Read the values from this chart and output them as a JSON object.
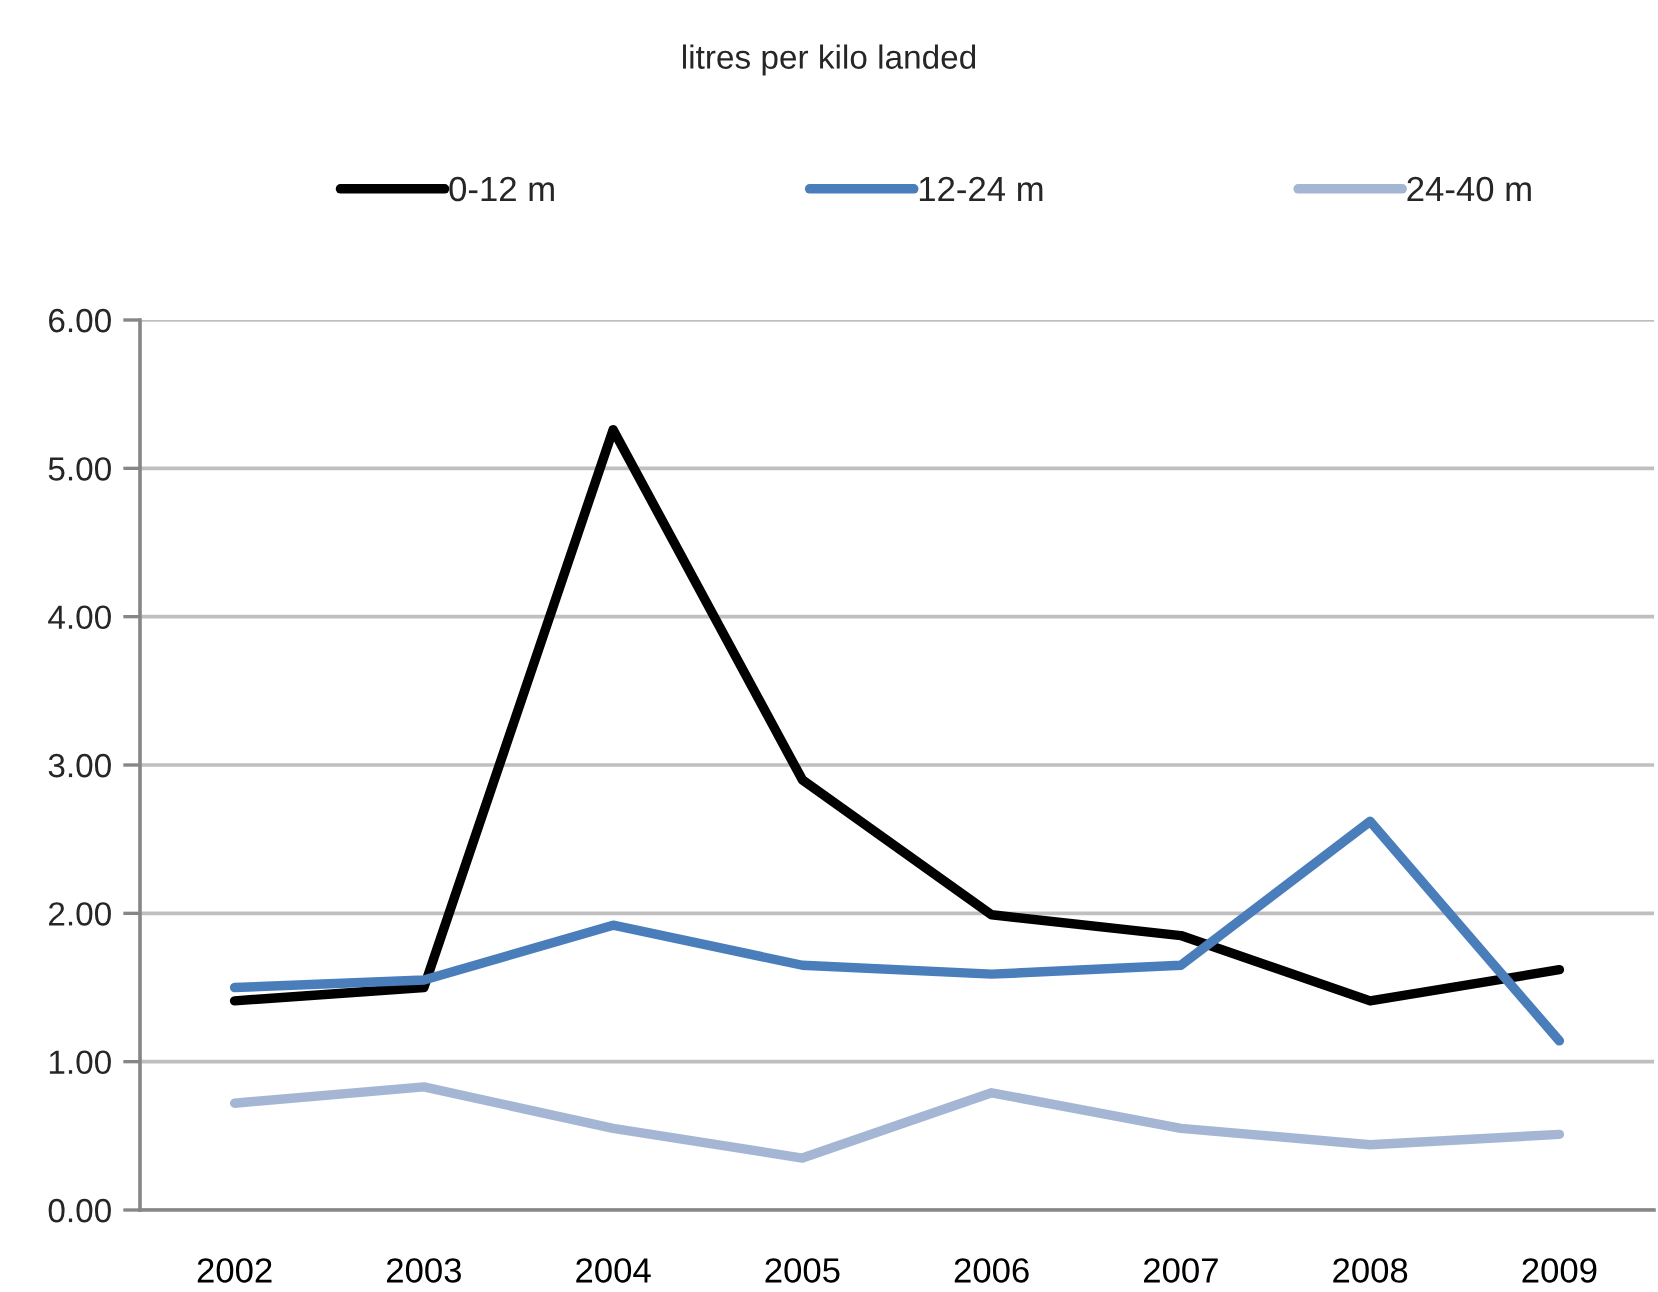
{
  "chart_data": {
    "type": "line",
    "title": "litres per kilo landed",
    "categories": [
      "2002",
      "2003",
      "2004",
      "2005",
      "2006",
      "2007",
      "2008",
      "2009"
    ],
    "series": [
      {
        "name": "0-12 m",
        "color": "#000000",
        "values": [
          1.41,
          1.5,
          5.26,
          2.9,
          1.99,
          1.85,
          1.41,
          1.62
        ]
      },
      {
        "name": "12-24 m",
        "color": "#4a7ebb",
        "values": [
          1.5,
          1.55,
          1.92,
          1.65,
          1.59,
          1.65,
          2.62,
          1.14
        ]
      },
      {
        "name": "24-40 m",
        "color": "#a5b6d5",
        "values": [
          0.72,
          0.83,
          0.55,
          0.35,
          0.79,
          0.55,
          0.44,
          0.51
        ]
      }
    ],
    "ylim": [
      0,
      6
    ],
    "yticks": [
      {
        "value": 0,
        "label": "0.00"
      },
      {
        "value": 1,
        "label": "1.00"
      },
      {
        "value": 2,
        "label": "2.00"
      },
      {
        "value": 3,
        "label": "3.00"
      },
      {
        "value": 4,
        "label": "4.00"
      },
      {
        "value": 5,
        "label": "5.00"
      },
      {
        "value": 6,
        "label": "6.00"
      }
    ],
    "grid": "y",
    "legend": "top",
    "marker": "none",
    "line_style": "solid"
  }
}
